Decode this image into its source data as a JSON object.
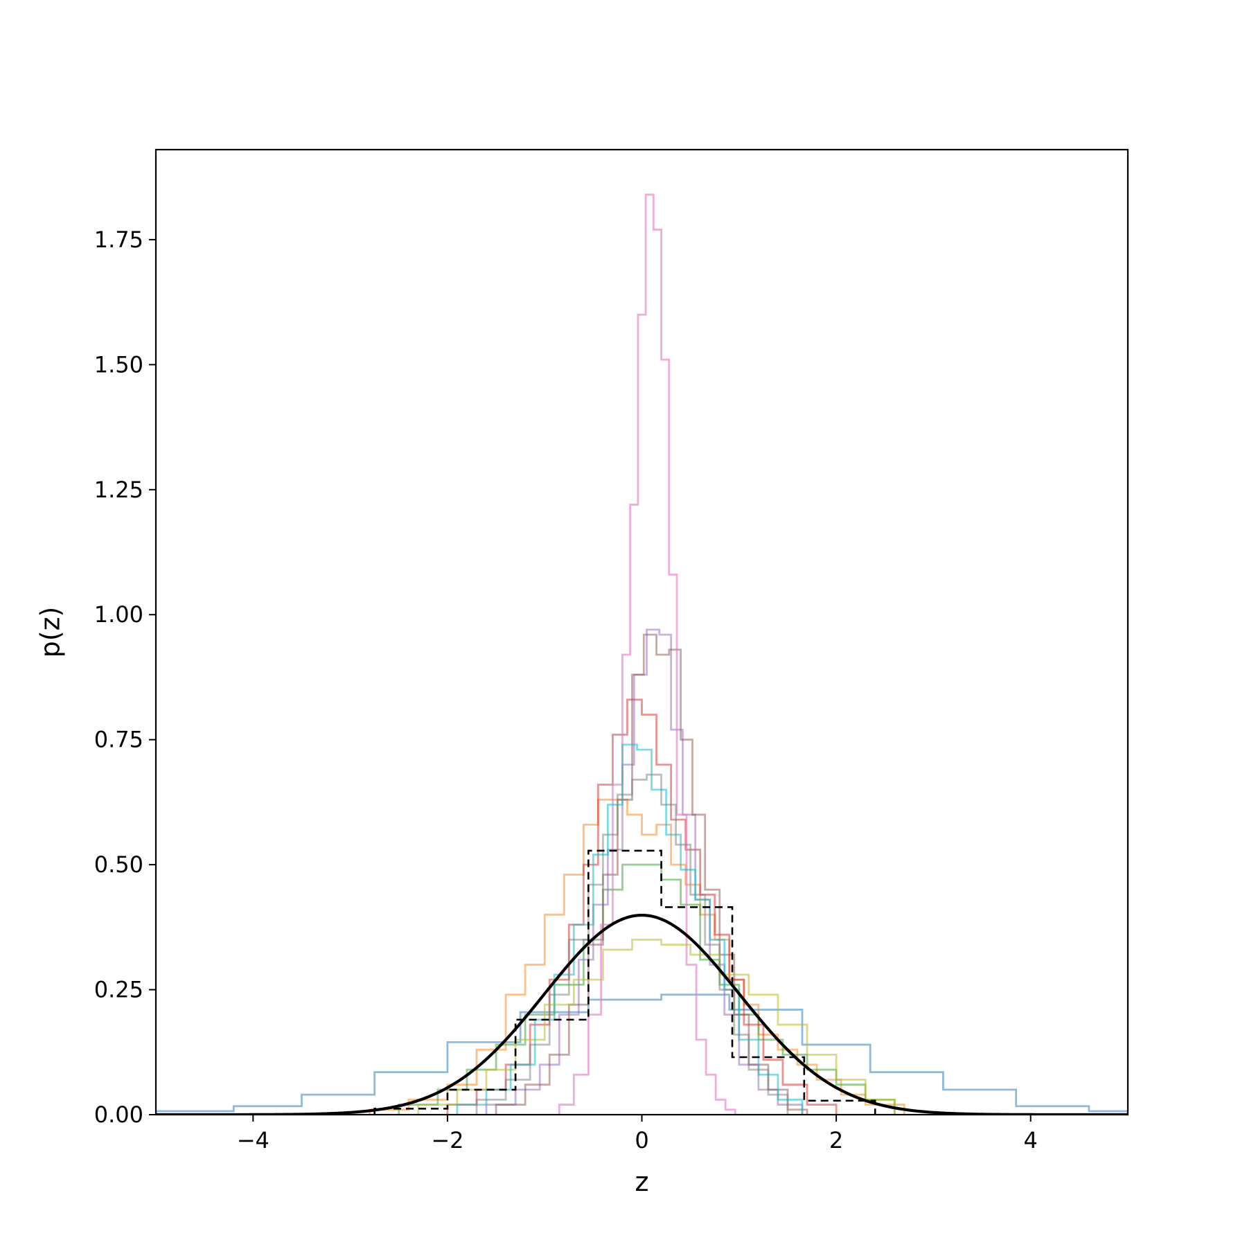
{
  "chart_data": {
    "type": "histogram",
    "title": "",
    "xlabel": "z",
    "ylabel": "p(z)",
    "xlim": [
      -5,
      5
    ],
    "ylim": [
      0,
      1.93
    ],
    "grid": false,
    "legend": "none",
    "x_ticks": [
      -4,
      -2,
      0,
      2,
      4
    ],
    "x_tick_labels": [
      "−4",
      "−2",
      "0",
      "2",
      "4"
    ],
    "y_ticks": [
      0,
      0.25,
      0.5,
      0.75,
      1.0,
      1.25,
      1.5,
      1.75
    ],
    "y_tick_labels": [
      "0.00",
      "0.25",
      "0.50",
      "0.75",
      "1.00",
      "1.25",
      "1.50",
      "1.75"
    ],
    "series": [
      {
        "color": "#1f77b4",
        "style": "step",
        "opacity": 0.5,
        "edges": [
          -5.0,
          -4.2,
          -3.5,
          -2.75,
          -2.0,
          -1.25,
          -0.55,
          0.2,
          0.9,
          1.65,
          2.35,
          3.1,
          3.85,
          4.6,
          5.0
        ],
        "values": [
          0.007,
          0.017,
          0.04,
          0.085,
          0.145,
          0.205,
          0.23,
          0.24,
          0.21,
          0.14,
          0.085,
          0.05,
          0.017,
          0.007
        ]
      },
      {
        "color": "#ff7f0e",
        "style": "step",
        "opacity": 0.5,
        "edges": [
          -2.8,
          -2.4,
          -2.0,
          -1.7,
          -1.4,
          -1.2,
          -1.0,
          -0.8,
          -0.6,
          -0.45,
          -0.3,
          -0.15,
          0.0,
          0.15,
          0.3,
          0.45,
          0.6,
          0.75,
          0.9,
          1.05,
          1.2,
          1.4,
          1.6,
          1.8,
          2.05,
          2.3,
          2.7
        ],
        "values": [
          0.01,
          0.03,
          0.06,
          0.13,
          0.24,
          0.3,
          0.4,
          0.48,
          0.58,
          0.63,
          0.63,
          0.6,
          0.56,
          0.58,
          0.5,
          0.46,
          0.4,
          0.35,
          0.27,
          0.22,
          0.16,
          0.13,
          0.1,
          0.07,
          0.04,
          0.02
        ]
      },
      {
        "color": "#2ca02c",
        "style": "step",
        "opacity": 0.5,
        "edges": [
          -2.5,
          -2.1,
          -1.8,
          -1.5,
          -1.2,
          -0.9,
          -0.6,
          -0.4,
          -0.2,
          0.0,
          0.2,
          0.4,
          0.6,
          0.8,
          1.0,
          1.2,
          1.45,
          1.7,
          2.0,
          2.3,
          2.6
        ],
        "values": [
          0.02,
          0.05,
          0.09,
          0.14,
          0.2,
          0.26,
          0.35,
          0.45,
          0.5,
          0.5,
          0.47,
          0.42,
          0.31,
          0.26,
          0.2,
          0.15,
          0.12,
          0.09,
          0.06,
          0.03
        ]
      },
      {
        "color": "#d62728",
        "style": "step",
        "opacity": 0.5,
        "edges": [
          -2.0,
          -1.7,
          -1.4,
          -1.15,
          -0.95,
          -0.75,
          -0.6,
          -0.45,
          -0.3,
          -0.15,
          0.0,
          0.15,
          0.3,
          0.45,
          0.6,
          0.75,
          0.9,
          1.05,
          1.25,
          1.45,
          1.7,
          2.0
        ],
        "values": [
          0.02,
          0.05,
          0.1,
          0.18,
          0.27,
          0.38,
          0.5,
          0.66,
          0.76,
          0.83,
          0.8,
          0.7,
          0.59,
          0.53,
          0.44,
          0.36,
          0.27,
          0.18,
          0.11,
          0.06,
          0.02
        ]
      },
      {
        "color": "#9467bd",
        "style": "step",
        "opacity": 0.5,
        "edges": [
          -1.6,
          -1.3,
          -1.05,
          -0.85,
          -0.65,
          -0.5,
          -0.35,
          -0.2,
          -0.08,
          0.05,
          0.18,
          0.3,
          0.42,
          0.55,
          0.7,
          0.85,
          1.0,
          1.2,
          1.4,
          1.65
        ],
        "values": [
          0.02,
          0.05,
          0.1,
          0.2,
          0.31,
          0.42,
          0.53,
          0.7,
          0.88,
          0.97,
          0.96,
          0.77,
          0.6,
          0.43,
          0.3,
          0.2,
          0.1,
          0.05,
          0.02
        ]
      },
      {
        "color": "#8c564b",
        "style": "step",
        "opacity": 0.5,
        "edges": [
          -1.5,
          -1.2,
          -0.95,
          -0.75,
          -0.55,
          -0.4,
          -0.25,
          -0.1,
          0.02,
          0.15,
          0.28,
          0.4,
          0.52,
          0.65,
          0.8,
          0.95,
          1.1,
          1.3,
          1.5,
          1.7
        ],
        "values": [
          0.02,
          0.06,
          0.12,
          0.22,
          0.34,
          0.48,
          0.63,
          0.88,
          0.96,
          0.92,
          0.93,
          0.75,
          0.6,
          0.45,
          0.32,
          0.2,
          0.1,
          0.05,
          0.01
        ]
      },
      {
        "color": "#e377c2",
        "style": "step",
        "opacity": 0.6,
        "edges": [
          -0.85,
          -0.7,
          -0.55,
          -0.42,
          -0.3,
          -0.2,
          -0.12,
          -0.04,
          0.04,
          0.12,
          0.2,
          0.28,
          0.36,
          0.46,
          0.56,
          0.66,
          0.76,
          0.86,
          0.96
        ],
        "values": [
          0.02,
          0.08,
          0.2,
          0.38,
          0.66,
          0.92,
          1.22,
          1.6,
          1.84,
          1.77,
          1.51,
          1.08,
          0.6,
          0.3,
          0.15,
          0.08,
          0.03,
          0.01
        ]
      },
      {
        "color": "#bcbd22",
        "style": "step",
        "opacity": 0.55,
        "edges": [
          -2.3,
          -1.9,
          -1.6,
          -1.3,
          -1.0,
          -0.7,
          -0.4,
          -0.1,
          0.2,
          0.5,
          0.8,
          1.1,
          1.4,
          1.7,
          2.0,
          2.3,
          2.6
        ],
        "values": [
          0.02,
          0.05,
          0.09,
          0.15,
          0.22,
          0.27,
          0.33,
          0.35,
          0.34,
          0.32,
          0.28,
          0.24,
          0.18,
          0.12,
          0.07,
          0.03
        ]
      },
      {
        "color": "#17becf",
        "style": "step",
        "opacity": 0.55,
        "edges": [
          -1.9,
          -1.6,
          -1.35,
          -1.1,
          -0.9,
          -0.7,
          -0.5,
          -0.35,
          -0.2,
          -0.05,
          0.1,
          0.25,
          0.4,
          0.55,
          0.7,
          0.85,
          1.0,
          1.2,
          1.4,
          1.65
        ],
        "values": [
          0.02,
          0.05,
          0.1,
          0.19,
          0.28,
          0.38,
          0.52,
          0.62,
          0.74,
          0.73,
          0.65,
          0.56,
          0.49,
          0.43,
          0.35,
          0.25,
          0.15,
          0.08,
          0.03
        ]
      },
      {
        "color": "#7f7f7f",
        "style": "step",
        "opacity": 0.5,
        "edges": [
          -1.7,
          -1.4,
          -1.15,
          -0.95,
          -0.75,
          -0.55,
          -0.4,
          -0.25,
          -0.1,
          0.05,
          0.2,
          0.35,
          0.5,
          0.65,
          0.8,
          0.95,
          1.1,
          1.3,
          1.5
        ],
        "values": [
          0.03,
          0.07,
          0.14,
          0.24,
          0.35,
          0.46,
          0.56,
          0.64,
          0.67,
          0.68,
          0.62,
          0.54,
          0.44,
          0.34,
          0.25,
          0.16,
          0.09,
          0.04
        ]
      },
      {
        "color": "#000000",
        "style": "dashed-step",
        "opacity": 1.0,
        "edges": [
          -2.75,
          -2.0,
          -1.3,
          -0.55,
          0.2,
          0.93,
          1.67,
          2.4
        ],
        "values": [
          0.012,
          0.05,
          0.19,
          0.528,
          0.415,
          0.115,
          0.028
        ]
      },
      {
        "color": "#000000",
        "style": "curve",
        "function": "normal_pdf",
        "mean": 0,
        "std": 1,
        "x_range": [
          -5,
          5
        ]
      }
    ]
  }
}
